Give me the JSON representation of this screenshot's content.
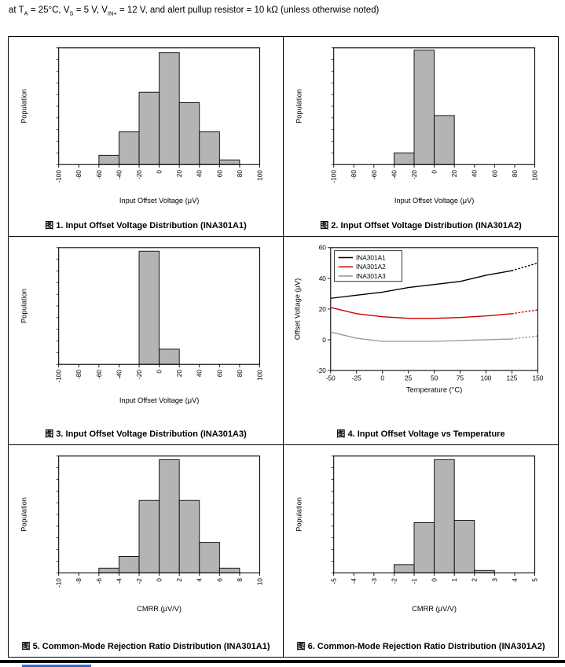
{
  "conditions": {
    "seg1": "at T",
    "sub1": "A",
    "seg2": " = 25°C, V",
    "sub2": "S",
    "seg3": " = 5 V, V",
    "sub3": "IN+",
    "seg4": " = 12 V, and alert pullup resistor = 10 kΩ (unless otherwise noted)"
  },
  "chart_data": [
    {
      "type": "bar",
      "title": "图 1. Input Offset Voltage Distribution (INA301A1)",
      "xlabel": "Input Offset Voltage (μV)",
      "ylabel": "Population",
      "xlim": [
        -100,
        100
      ],
      "xticks": [
        -100,
        -80,
        -60,
        -40,
        -20,
        0,
        20,
        40,
        60,
        80,
        100
      ],
      "ylim": [
        0,
        100
      ],
      "bin_width": 20,
      "bars": [
        {
          "x_start": -60,
          "height": 8
        },
        {
          "x_start": -40,
          "height": 28
        },
        {
          "x_start": -20,
          "height": 62
        },
        {
          "x_start": 0,
          "height": 96
        },
        {
          "x_start": 20,
          "height": 53
        },
        {
          "x_start": 40,
          "height": 28
        },
        {
          "x_start": 60,
          "height": 4
        }
      ]
    },
    {
      "type": "bar",
      "title": "图 2. Input Offset Voltage Distribution (INA301A2)",
      "xlabel": "Input Offset Voltage (μV)",
      "ylabel": "Population",
      "xlim": [
        -100,
        100
      ],
      "xticks": [
        -100,
        -80,
        -60,
        -40,
        -20,
        0,
        20,
        40,
        60,
        80,
        100
      ],
      "ylim": [
        0,
        100
      ],
      "bin_width": 20,
      "bars": [
        {
          "x_start": -40,
          "height": 10
        },
        {
          "x_start": -20,
          "height": 98
        },
        {
          "x_start": 0,
          "height": 42
        }
      ]
    },
    {
      "type": "bar",
      "title": "图 3. Input Offset Voltage Distribution (INA301A3)",
      "xlabel": "Input Offset Voltage (μV)",
      "ylabel": "Population",
      "xlim": [
        -100,
        100
      ],
      "xticks": [
        -100,
        -80,
        -60,
        -40,
        -20,
        0,
        20,
        40,
        60,
        80,
        100
      ],
      "ylim": [
        0,
        100
      ],
      "bin_width": 20,
      "bars": [
        {
          "x_start": -20,
          "height": 97
        },
        {
          "x_start": 0,
          "height": 13
        }
      ]
    },
    {
      "type": "line",
      "title": "图 4. Input Offset Voltage vs Temperature",
      "xlabel": "Temperature (°C)",
      "ylabel": "Offset Voltage (μV)",
      "xlim": [
        -50,
        150
      ],
      "xticks": [
        -50,
        -25,
        0,
        25,
        50,
        75,
        100,
        125,
        150
      ],
      "ylim": [
        -20,
        60
      ],
      "yticks": [
        -20,
        0,
        20,
        40,
        60
      ],
      "legend_position": "top-left",
      "series": [
        {
          "name": "INA301A1",
          "color": "#000000",
          "x": [
            -50,
            -25,
            0,
            25,
            50,
            75,
            100,
            125,
            150
          ],
          "y": [
            27,
            29,
            31,
            34,
            36,
            38,
            42,
            45,
            50
          ],
          "dot_from_index": 7
        },
        {
          "name": "INA301A2",
          "color": "#cc0000",
          "x": [
            -50,
            -25,
            0,
            25,
            50,
            75,
            100,
            125,
            150
          ],
          "y": [
            21,
            17,
            15,
            14,
            14,
            14.5,
            15.5,
            17,
            19.5
          ],
          "dot_from_index": 7
        },
        {
          "name": "INA301A3",
          "color": "#9b9b9b",
          "x": [
            -50,
            -25,
            0,
            25,
            50,
            75,
            100,
            125,
            150
          ],
          "y": [
            5,
            1,
            -1,
            -1,
            -1,
            -0.5,
            0,
            0.5,
            2.5
          ],
          "dot_from_index": 7
        }
      ]
    },
    {
      "type": "bar",
      "title": "图 5. Common-Mode Rejection Ratio Distribution (INA301A1)",
      "xlabel": "CMRR (μV/V)",
      "ylabel": "Population",
      "xlim": [
        -10,
        10
      ],
      "xticks": [
        -10,
        -8,
        -6,
        -4,
        -2,
        0,
        2,
        4,
        6,
        8,
        10
      ],
      "ylim": [
        0,
        100
      ],
      "bin_width": 2,
      "bars": [
        {
          "x_start": -6,
          "height": 4
        },
        {
          "x_start": -4,
          "height": 14
        },
        {
          "x_start": -2,
          "height": 62
        },
        {
          "x_start": 0,
          "height": 97
        },
        {
          "x_start": 2,
          "height": 62
        },
        {
          "x_start": 4,
          "height": 26
        },
        {
          "x_start": 6,
          "height": 4
        }
      ]
    },
    {
      "type": "bar",
      "title": "图 6. Common-Mode Rejection Ratio Distribution (INA301A2)",
      "xlabel": "CMRR (μV/V)",
      "ylabel": "Population",
      "xlim": [
        -5,
        5
      ],
      "xticks": [
        -5,
        -4,
        -3,
        -2,
        -1,
        0,
        1,
        2,
        3,
        4,
        5
      ],
      "ylim": [
        0,
        100
      ],
      "bin_width": 1,
      "bars": [
        {
          "x_start": -2,
          "height": 7
        },
        {
          "x_start": -1,
          "height": 43
        },
        {
          "x_start": 0,
          "height": 97
        },
        {
          "x_start": 1,
          "height": 45
        },
        {
          "x_start": 2,
          "height": 2
        }
      ]
    }
  ]
}
